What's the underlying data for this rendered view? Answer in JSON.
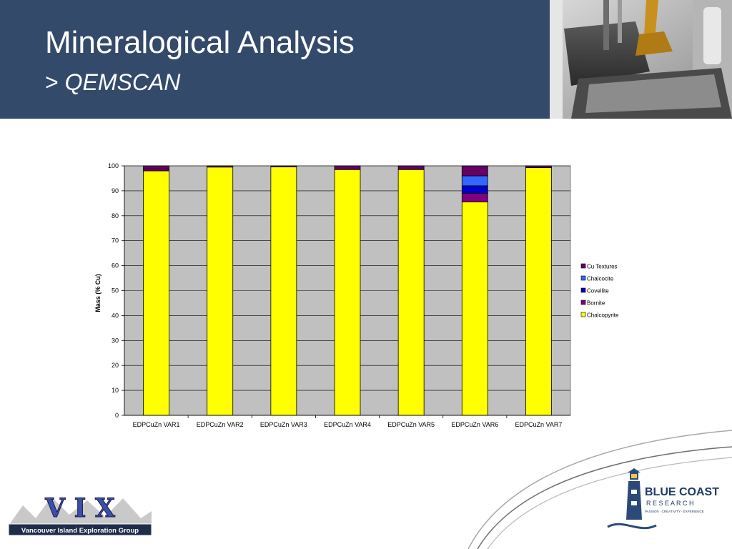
{
  "header": {
    "title": "Mineralogical Analysis",
    "subtitle_prefix": ">",
    "subtitle": "QEMSCAN",
    "background_color": "#334a6a"
  },
  "chart_data": {
    "type": "bar",
    "stacked": true,
    "title": "",
    "xlabel": "",
    "ylabel": "Mass (% Cu)",
    "ylim": [
      0,
      100
    ],
    "yticks": [
      0,
      10,
      20,
      30,
      40,
      50,
      60,
      70,
      80,
      90,
      100
    ],
    "grid": true,
    "plot_background": "#c0c0c0",
    "legend_position": "right",
    "categories": [
      "EDPCuZn VAR1",
      "EDPCuZn VAR2",
      "EDPCuZn VAR3",
      "EDPCuZn VAR4",
      "EDPCuZn VAR5",
      "EDPCuZn VAR6",
      "EDPCuZn VAR7"
    ],
    "series": [
      {
        "name": "Chalcopyrite",
        "color": "#ffff00",
        "values": [
          98.0,
          99.5,
          99.6,
          98.5,
          98.5,
          85.5,
          99.3
        ]
      },
      {
        "name": "Bornite",
        "color": "#800080",
        "values": [
          0.8,
          0.0,
          0.0,
          0.0,
          0.0,
          3.5,
          0.0
        ]
      },
      {
        "name": "Covellite",
        "color": "#0000cc",
        "values": [
          0.0,
          0.0,
          0.0,
          0.0,
          0.0,
          3.0,
          0.0
        ]
      },
      {
        "name": "Chalcocite",
        "color": "#3366ff",
        "values": [
          0.0,
          0.0,
          0.0,
          0.0,
          0.0,
          4.0,
          0.0
        ]
      },
      {
        "name": "Cu Textures",
        "color": "#660066",
        "values": [
          1.2,
          0.5,
          0.4,
          1.5,
          1.5,
          4.0,
          0.7
        ]
      }
    ]
  },
  "logos": {
    "vix": {
      "letters": "V I X",
      "caption": "Vancouver Island Exploration Group"
    },
    "bluecoast": {
      "name": "BLUE COAST",
      "sub": "R E S E A R C H",
      "tagline": "PASSION · CREATIVITY · EXPERIENCE"
    }
  },
  "photo": {
    "icon": "lab-equipment-photo"
  }
}
